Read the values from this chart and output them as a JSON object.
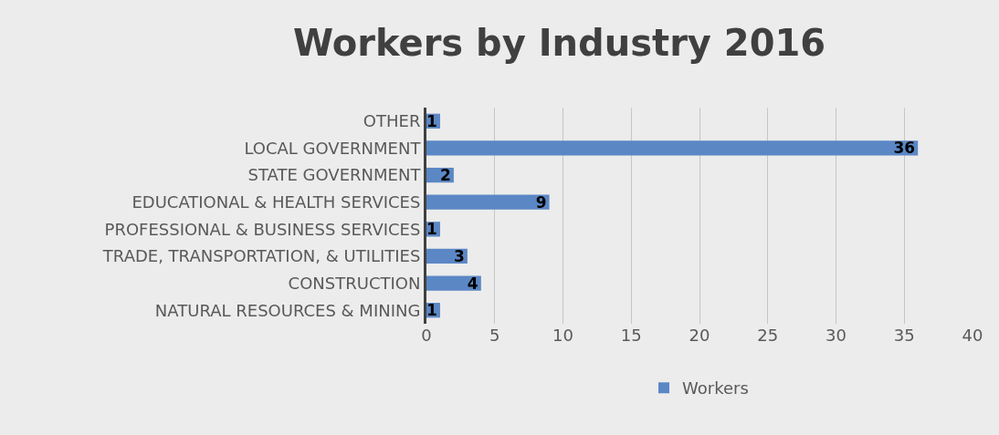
{
  "chart_data": {
    "type": "bar",
    "title": "Workers by Industry 2016",
    "orientation": "horizontal",
    "categories": [
      "OTHER",
      "LOCAL GOVERNMENT",
      "STATE GOVERNMENT",
      "EDUCATIONAL & HEALTH SERVICES",
      "PROFESSIONAL & BUSINESS SERVICES",
      "TRADE, TRANSPORTATION, & UTILITIES",
      "CONSTRUCTION",
      "NATURAL RESOURCES & MINING"
    ],
    "series": [
      {
        "name": "Workers",
        "color": "#5b87c5",
        "values": [
          1,
          36,
          2,
          9,
          1,
          3,
          4,
          1
        ]
      }
    ],
    "xlim": [
      0,
      40
    ],
    "xticks": [
      0,
      5,
      10,
      15,
      20,
      25,
      30,
      35,
      40
    ],
    "grid": "x",
    "legend": "bottom",
    "data_labels": true
  }
}
